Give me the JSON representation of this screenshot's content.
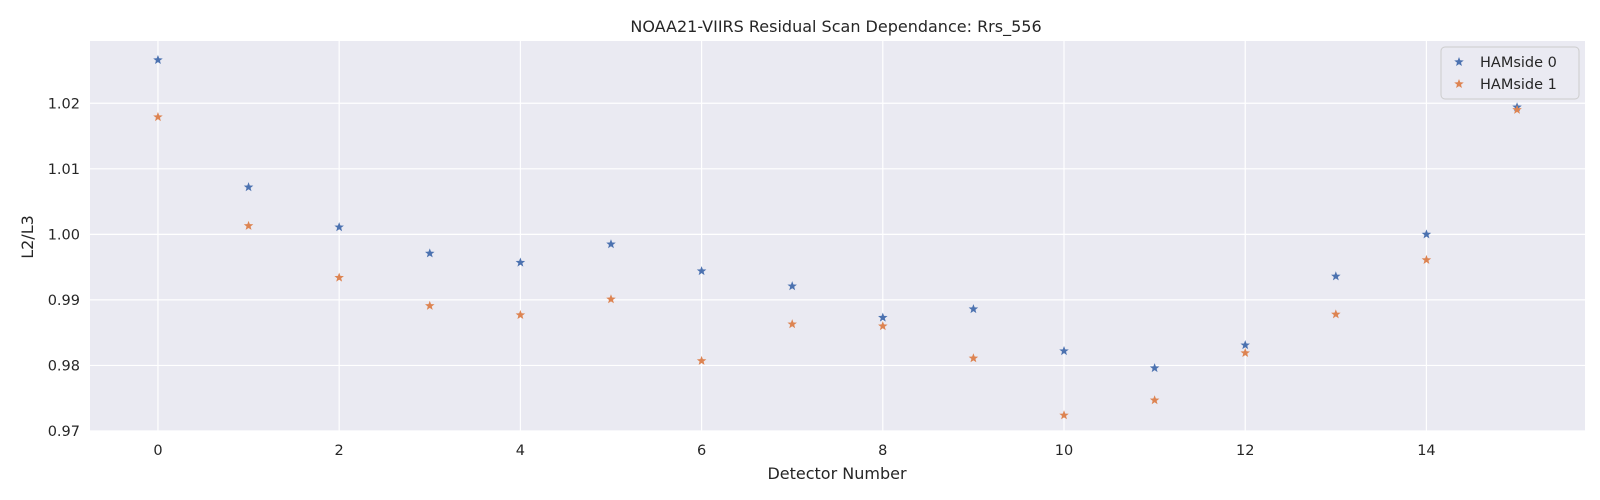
{
  "chart_data": {
    "type": "scatter",
    "title": "NOAA21-VIIRS Residual Scan Dependance: Rrs_556",
    "xlabel": "Detector Number",
    "ylabel": "L2/L3",
    "xlim": [
      -0.75,
      15.75
    ],
    "ylim": [
      0.97,
      1.0295
    ],
    "x_ticks": [
      0,
      2,
      4,
      6,
      8,
      10,
      12,
      14
    ],
    "y_ticks": [
      0.97,
      0.98,
      0.99,
      1.0,
      1.01,
      1.02
    ],
    "y_tick_labels": [
      "0.97",
      "0.98",
      "0.99",
      "1.00",
      "1.01",
      "1.02"
    ],
    "grid": true,
    "legend_position": "top-right",
    "marker": "star",
    "x": [
      0,
      1,
      2,
      3,
      4,
      5,
      6,
      7,
      8,
      9,
      10,
      11,
      12,
      13,
      14,
      15
    ],
    "series": [
      {
        "name": "HAMside 0",
        "color": "#4c72b0",
        "values": [
          1.0266,
          1.0072,
          1.0011,
          0.9971,
          0.9957,
          0.9985,
          0.9944,
          0.9921,
          0.9873,
          0.9886,
          0.9822,
          0.9796,
          0.9831,
          0.9936,
          1.0,
          1.0194
        ]
      },
      {
        "name": "HAMside 1",
        "color": "#dd8452",
        "values": [
          1.0179,
          1.0013,
          0.9934,
          0.9891,
          0.9877,
          0.9901,
          0.9807,
          0.9863,
          0.986,
          0.9811,
          0.9724,
          0.9747,
          0.9819,
          0.9878,
          0.9961,
          1.019
        ]
      }
    ]
  }
}
